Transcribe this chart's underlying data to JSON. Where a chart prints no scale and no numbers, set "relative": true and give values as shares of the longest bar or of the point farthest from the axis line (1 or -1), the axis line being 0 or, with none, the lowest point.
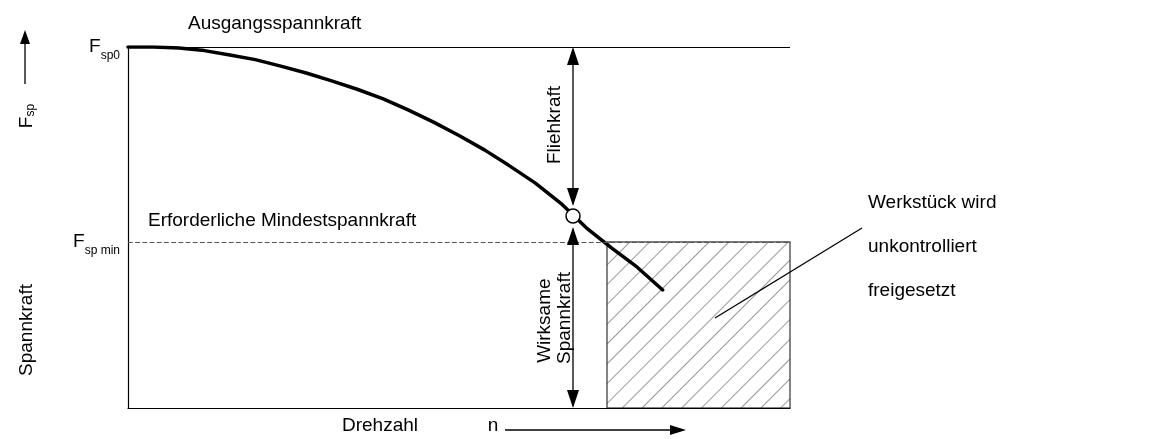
{
  "chart_data": {
    "type": "line",
    "relative": true,
    "xlabel": "Drehzahl",
    "ylabel": "Spannkraft",
    "categories": [
      null,
      null,
      null,
      null,
      null,
      null,
      null,
      null,
      null,
      null,
      null,
      null,
      null,
      null,
      null,
      null,
      null,
      null,
      null,
      null,
      null,
      null,
      null,
      null,
      null,
      null,
      null
    ],
    "series": [
      {
        "color": "#000000",
        "values": [
          1.0,
          1.0,
          0.997,
          0.99,
          0.978,
          0.965,
          0.947,
          0.928,
          0.906,
          0.883,
          0.857,
          0.826,
          0.792,
          0.755,
          0.715,
          0.67,
          0.623,
          0.567,
          0.499,
          0.443,
          0.39,
          0.327,
          null,
          null,
          null,
          null,
          null
        ]
      }
    ],
    "marker": "none",
    "line_style": "solid",
    "grid": false,
    "ref_lines": [
      {
        "axis": "y",
        "value": 1,
        "label": "F$_{sp0}$",
        "color": "#000000",
        "line_style": "solid"
      },
      {
        "axis": "y",
        "value": 0.46,
        "label": "F$_{sp min}$",
        "color": "#555555",
        "line_style": "dashed"
      }
    ],
    "annotations": [
      "Ausgangsspannkraft",
      "Erforderliche Mindestspannkraft",
      "Fliehkraft",
      "Wirksame Spannkraft",
      "Werkstück wird unkontrolliert freigesetzt",
      "F$_{sp}$",
      "n"
    ]
  }
}
